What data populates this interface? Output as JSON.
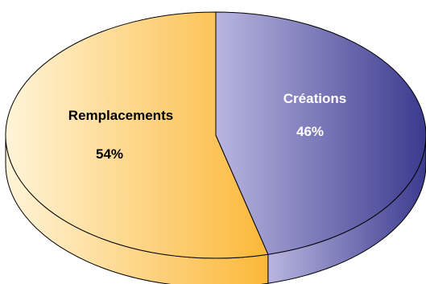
{
  "chart_data": {
    "type": "pie",
    "style": "3d",
    "slices": [
      {
        "label": "Remplacements",
        "value": 54,
        "value_label": "54%",
        "color": "#fbb838",
        "color_light": "#fff4d9",
        "text_color": "#000000"
      },
      {
        "label": "Créations",
        "value": 46,
        "value_label": "46%",
        "color": "#3b3a8e",
        "color_light": "#b9b6e0",
        "text_color": "#ffffff"
      }
    ]
  }
}
